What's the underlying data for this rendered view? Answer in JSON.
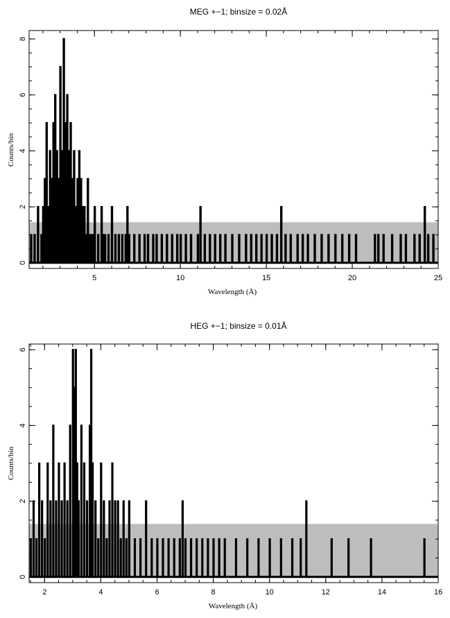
{
  "chart_data": [
    {
      "type": "line",
      "title": "MEG +−1; binsize = 0.02Å",
      "xlabel": "Wavelength (Å)",
      "ylabel": "Counts/bin",
      "xlim": [
        1.2,
        25
      ],
      "ylim": [
        -0.2,
        8.3
      ],
      "xticks": [
        5,
        10,
        15,
        20,
        25
      ],
      "yticks": [
        0,
        2,
        4,
        6,
        8
      ],
      "grid": false,
      "series": [
        {
          "style": "gray-error-band",
          "x": [
            1.2,
            25
          ],
          "values": [
            1.45,
            1.45
          ],
          "values_lower": [
            0,
            0
          ]
        },
        {
          "style": "black-histogram",
          "x": [
            1.3,
            1.5,
            1.7,
            1.9,
            2.0,
            2.1,
            2.2,
            2.3,
            2.4,
            2.5,
            2.6,
            2.7,
            2.8,
            2.9,
            3.0,
            3.1,
            3.2,
            3.3,
            3.4,
            3.5,
            3.6,
            3.7,
            3.8,
            3.9,
            4.0,
            4.1,
            4.2,
            4.3,
            4.4,
            4.5,
            4.6,
            4.7,
            4.8,
            4.9,
            5.0,
            5.2,
            5.4,
            5.5,
            5.6,
            5.8,
            6.0,
            6.2,
            6.4,
            6.6,
            6.8,
            6.9,
            7.0,
            7.3,
            7.6,
            7.9,
            8.1,
            8.4,
            8.6,
            8.9,
            9.2,
            9.5,
            9.8,
            10.0,
            10.3,
            10.6,
            11.0,
            11.15,
            11.4,
            11.7,
            12.0,
            12.3,
            12.6,
            13.0,
            13.4,
            13.8,
            14.1,
            14.4,
            14.7,
            15.0,
            15.3,
            15.6,
            15.85,
            16.1,
            16.4,
            16.8,
            17.1,
            17.4,
            17.8,
            18.2,
            18.6,
            19.0,
            19.4,
            19.8,
            20.2,
            21.3,
            21.5,
            21.8,
            22.3,
            22.8,
            23.1,
            23.6,
            23.9,
            24.2,
            24.4,
            24.7
          ],
          "values": [
            1,
            1,
            2,
            1,
            2,
            3,
            5,
            2,
            4,
            3,
            5,
            6,
            4,
            3,
            7,
            4,
            8,
            5,
            6,
            4,
            5,
            3,
            4,
            2,
            3,
            4,
            3,
            2,
            2,
            1,
            3,
            1,
            1,
            1,
            2,
            1,
            2,
            1,
            1,
            1,
            2,
            1,
            1,
            1,
            1,
            2,
            1,
            1,
            1,
            1,
            1,
            1,
            1,
            1,
            1,
            1,
            1,
            1,
            1,
            1,
            1,
            2,
            1,
            1,
            1,
            1,
            1,
            1,
            1,
            1,
            1,
            1,
            1,
            1,
            1,
            1,
            2,
            1,
            1,
            1,
            1,
            1,
            1,
            1,
            1,
            1,
            1,
            1,
            1,
            1,
            1,
            1,
            1,
            1,
            1,
            1,
            1,
            2,
            1,
            1
          ]
        }
      ]
    },
    {
      "type": "line",
      "title": "HEG +−1; binsize = 0.01Å",
      "xlabel": "Wavelength (Å)",
      "ylabel": "Counts/bin",
      "xlim": [
        1.45,
        16
      ],
      "ylim": [
        -0.15,
        6.15
      ],
      "xticks": [
        2,
        4,
        6,
        8,
        10,
        12,
        14,
        16
      ],
      "yticks": [
        0,
        2,
        4,
        6
      ],
      "grid": false,
      "series": [
        {
          "style": "gray-error-band",
          "x": [
            1.45,
            16
          ],
          "values": [
            1.4,
            1.4
          ],
          "values_lower": [
            0,
            0
          ]
        },
        {
          "style": "black-histogram",
          "x": [
            1.5,
            1.6,
            1.7,
            1.8,
            1.9,
            2.0,
            2.1,
            2.2,
            2.3,
            2.4,
            2.5,
            2.6,
            2.7,
            2.8,
            2.9,
            3.0,
            3.05,
            3.1,
            3.15,
            3.2,
            3.3,
            3.4,
            3.5,
            3.6,
            3.65,
            3.7,
            3.8,
            3.9,
            4.0,
            4.1,
            4.2,
            4.3,
            4.4,
            4.5,
            4.6,
            4.7,
            4.8,
            4.9,
            5.0,
            5.2,
            5.4,
            5.6,
            5.8,
            6.0,
            6.2,
            6.4,
            6.6,
            6.8,
            6.9,
            7.0,
            7.2,
            7.4,
            7.6,
            7.8,
            8.0,
            8.2,
            8.4,
            8.8,
            9.2,
            9.6,
            10.0,
            10.4,
            10.8,
            11.1,
            11.3,
            12.2,
            12.8,
            13.6,
            15.5
          ],
          "values": [
            1,
            2,
            1,
            3,
            2,
            1,
            3,
            2,
            4,
            2,
            3,
            2,
            3,
            2,
            4,
            6,
            5,
            6,
            3,
            2,
            4,
            3,
            2,
            4,
            6,
            3,
            2,
            1,
            3,
            2,
            1,
            2,
            3,
            2,
            2,
            1,
            2,
            1,
            2,
            1,
            1,
            2,
            1,
            1,
            1,
            1,
            1,
            1,
            2,
            1,
            1,
            1,
            1,
            1,
            1,
            1,
            1,
            1,
            1,
            1,
            1,
            1,
            1,
            1,
            2,
            1,
            1,
            1,
            1
          ]
        }
      ]
    }
  ]
}
